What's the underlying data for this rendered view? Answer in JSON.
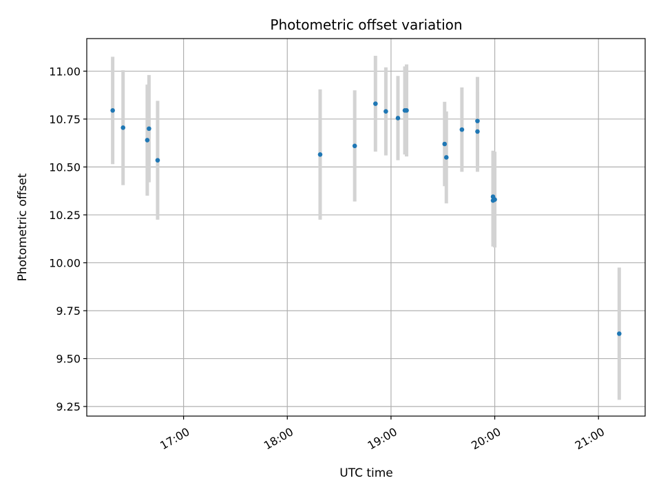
{
  "chart_data": {
    "type": "scatter",
    "title": "Photometric offset variation",
    "xlabel": "UTC time",
    "ylabel": "Photometric offset",
    "x_axis": {
      "type": "time",
      "range": [
        "16:04",
        "21:27"
      ],
      "ticks": [
        "17:00",
        "18:00",
        "19:00",
        "20:00",
        "21:00"
      ]
    },
    "y_axis": {
      "range": [
        9.2,
        11.17
      ],
      "ticks": [
        "9.25",
        "9.50",
        "9.75",
        "10.00",
        "10.25",
        "10.50",
        "10.75",
        "11.00"
      ]
    },
    "grid": true,
    "series": [
      {
        "marker_color": "#1f77b4",
        "errorbar_color": "#d3d3d3",
        "points": [
          {
            "x": "16:19",
            "y": 10.795,
            "yerr": 0.28
          },
          {
            "x": "16:25",
            "y": 10.705,
            "yerr": 0.3
          },
          {
            "x": "16:39",
            "y": 10.64,
            "yerr": 0.29
          },
          {
            "x": "16:40",
            "y": 10.7,
            "yerr": 0.28
          },
          {
            "x": "16:45",
            "y": 10.535,
            "yerr": 0.31
          },
          {
            "x": "18:19",
            "y": 10.565,
            "yerr": 0.34
          },
          {
            "x": "18:39",
            "y": 10.61,
            "yerr": 0.29
          },
          {
            "x": "18:51",
            "y": 10.83,
            "yerr": 0.25
          },
          {
            "x": "18:57",
            "y": 10.79,
            "yerr": 0.23
          },
          {
            "x": "19:04",
            "y": 10.755,
            "yerr": 0.22
          },
          {
            "x": "19:08",
            "y": 10.795,
            "yerr": 0.23
          },
          {
            "x": "19:09",
            "y": 10.795,
            "yerr": 0.24
          },
          {
            "x": "19:31",
            "y": 10.62,
            "yerr": 0.22
          },
          {
            "x": "19:32",
            "y": 10.55,
            "yerr": 0.24
          },
          {
            "x": "19:41",
            "y": 10.695,
            "yerr": 0.22
          },
          {
            "x": "19:50",
            "y": 10.685,
            "yerr": 0.21
          },
          {
            "x": "19:50",
            "y": 10.74,
            "yerr": 0.23
          },
          {
            "x": "19:59",
            "y": 10.345,
            "yerr": 0.24
          },
          {
            "x": "19:59",
            "y": 10.325,
            "yerr": 0.24
          },
          {
            "x": "20:00",
            "y": 10.33,
            "yerr": 0.25
          },
          {
            "x": "21:12",
            "y": 9.63,
            "yerr": 0.345
          }
        ]
      }
    ]
  }
}
